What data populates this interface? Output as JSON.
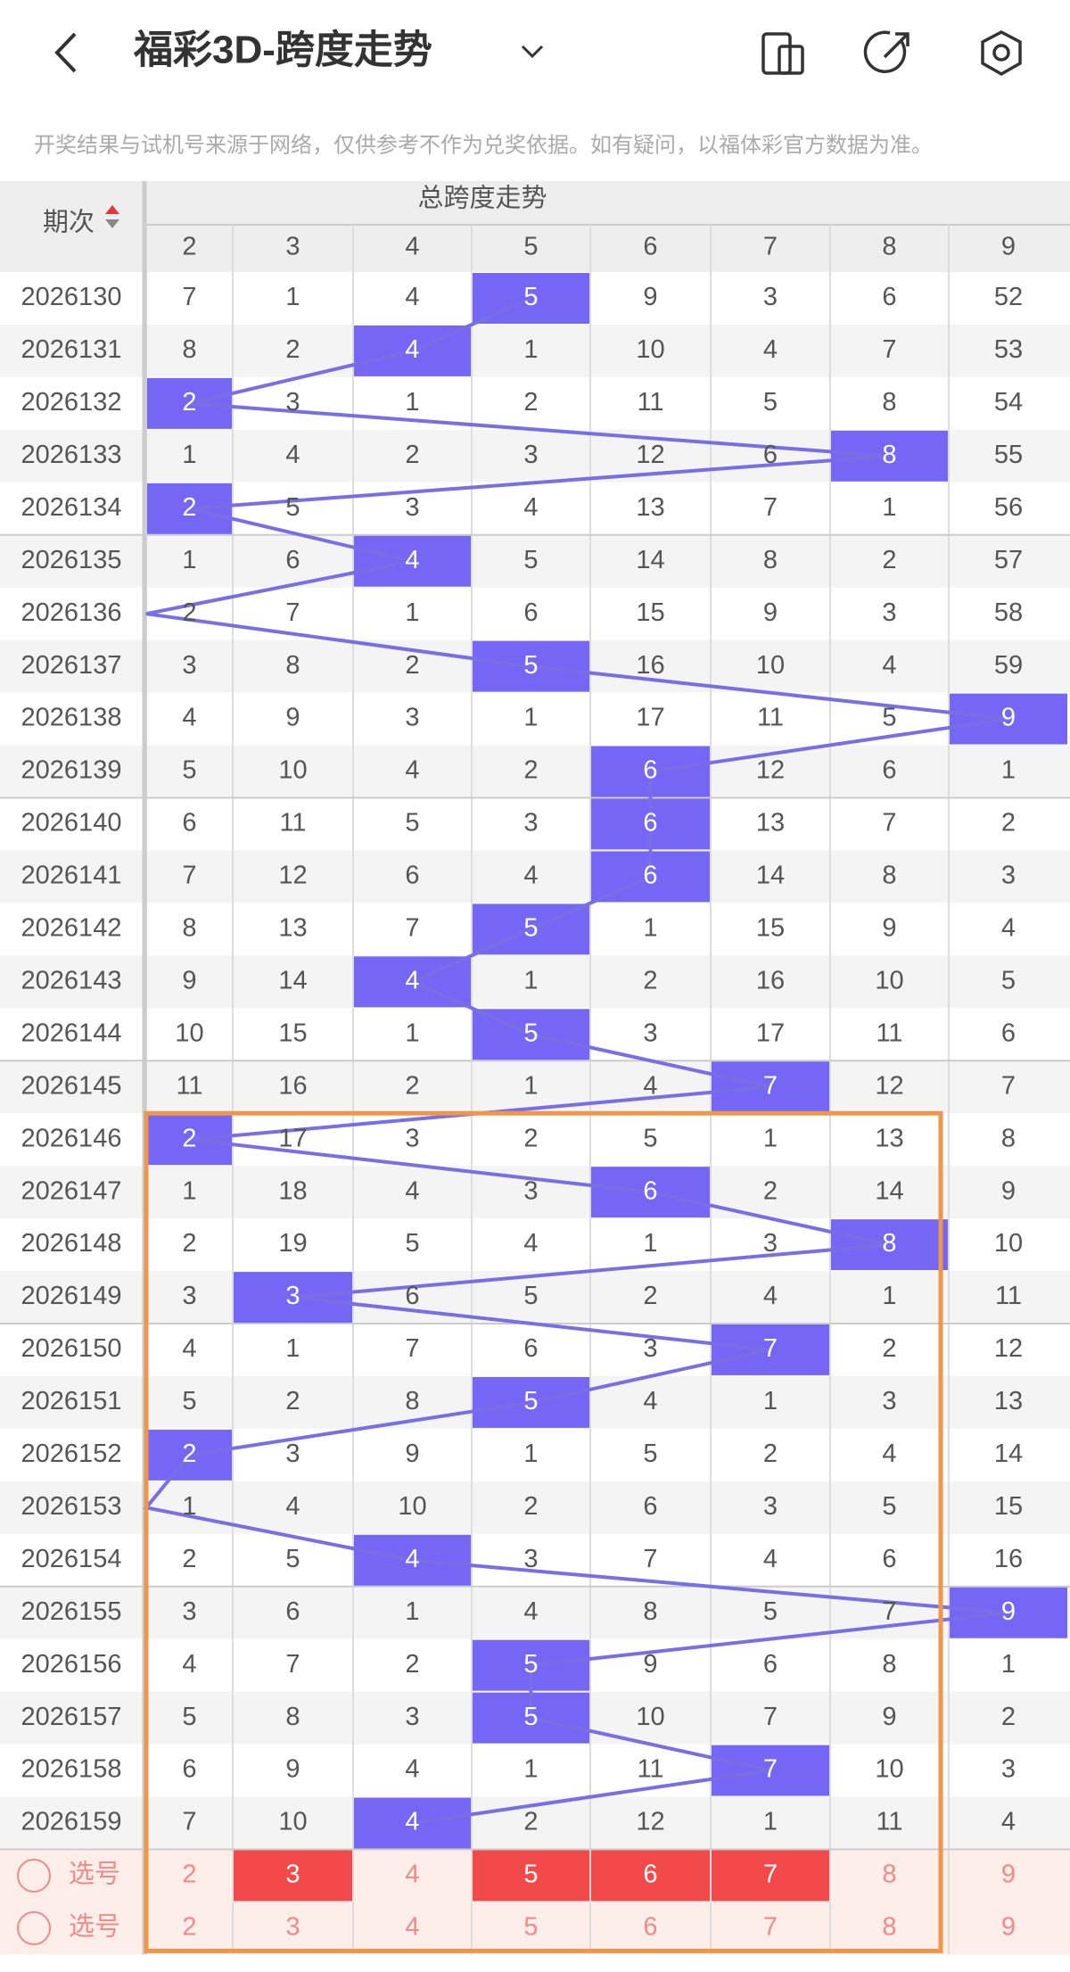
{
  "header": {
    "title": "福彩3D-跨度走势"
  },
  "notice": "开奖结果与试机号来源于网络，仅供参考不作为兑奖依据。如有疑问，以福体彩官方数据为准。",
  "table": {
    "corner": "期次",
    "group_header": "总跨度走势",
    "columns": [
      2,
      3,
      4,
      5,
      6,
      7,
      8,
      9
    ],
    "rows": [
      {
        "issue": "2026130",
        "cells": [
          7,
          1,
          4,
          5,
          9,
          3,
          6,
          52
        ],
        "hit": 3
      },
      {
        "issue": "2026131",
        "cells": [
          8,
          2,
          4,
          1,
          10,
          4,
          7,
          53
        ],
        "hit": 2
      },
      {
        "issue": "2026132",
        "cells": [
          2,
          3,
          1,
          2,
          11,
          5,
          8,
          54
        ],
        "hit": 0
      },
      {
        "issue": "2026133",
        "cells": [
          1,
          4,
          2,
          3,
          12,
          6,
          8,
          55
        ],
        "hit": 6
      },
      {
        "issue": "2026134",
        "cells": [
          2,
          5,
          3,
          4,
          13,
          7,
          1,
          56
        ],
        "hit": 0
      },
      {
        "issue": "2026135",
        "cells": [
          1,
          6,
          4,
          5,
          14,
          8,
          2,
          57
        ],
        "hit": 2
      },
      {
        "issue": "2026136",
        "cells": [
          2,
          7,
          1,
          6,
          15,
          9,
          3,
          58
        ],
        "hit": null
      },
      {
        "issue": "2026137",
        "cells": [
          3,
          8,
          2,
          5,
          16,
          10,
          4,
          59
        ],
        "hit": 3
      },
      {
        "issue": "2026138",
        "cells": [
          4,
          9,
          3,
          1,
          17,
          11,
          5,
          9
        ],
        "hit": 7
      },
      {
        "issue": "2026139",
        "cells": [
          5,
          10,
          4,
          2,
          6,
          12,
          6,
          1
        ],
        "hit": 4
      },
      {
        "issue": "2026140",
        "cells": [
          6,
          11,
          5,
          3,
          6,
          13,
          7,
          2
        ],
        "hit": 4
      },
      {
        "issue": "2026141",
        "cells": [
          7,
          12,
          6,
          4,
          6,
          14,
          8,
          3
        ],
        "hit": 4
      },
      {
        "issue": "2026142",
        "cells": [
          8,
          13,
          7,
          5,
          1,
          15,
          9,
          4
        ],
        "hit": 3
      },
      {
        "issue": "2026143",
        "cells": [
          9,
          14,
          4,
          1,
          2,
          16,
          10,
          5
        ],
        "hit": 2
      },
      {
        "issue": "2026144",
        "cells": [
          10,
          15,
          1,
          5,
          3,
          17,
          11,
          6
        ],
        "hit": 3
      },
      {
        "issue": "2026145",
        "cells": [
          11,
          16,
          2,
          1,
          4,
          7,
          12,
          7
        ],
        "hit": 5
      },
      {
        "issue": "2026146",
        "cells": [
          2,
          17,
          3,
          2,
          5,
          1,
          13,
          8
        ],
        "hit": 0
      },
      {
        "issue": "2026147",
        "cells": [
          1,
          18,
          4,
          3,
          6,
          2,
          14,
          9
        ],
        "hit": 4
      },
      {
        "issue": "2026148",
        "cells": [
          2,
          19,
          5,
          4,
          1,
          3,
          8,
          10
        ],
        "hit": 6
      },
      {
        "issue": "2026149",
        "cells": [
          3,
          3,
          6,
          5,
          2,
          4,
          1,
          11
        ],
        "hit": 1
      },
      {
        "issue": "2026150",
        "cells": [
          4,
          1,
          7,
          6,
          3,
          7,
          2,
          12
        ],
        "hit": 5
      },
      {
        "issue": "2026151",
        "cells": [
          5,
          2,
          8,
          5,
          4,
          1,
          3,
          13
        ],
        "hit": 3
      },
      {
        "issue": "2026152",
        "cells": [
          2,
          3,
          9,
          1,
          5,
          2,
          4,
          14
        ],
        "hit": 0
      },
      {
        "issue": "2026153",
        "cells": [
          1,
          4,
          10,
          2,
          6,
          3,
          5,
          15
        ],
        "hit": null
      },
      {
        "issue": "2026154",
        "cells": [
          2,
          5,
          4,
          3,
          7,
          4,
          6,
          16
        ],
        "hit": 2
      },
      {
        "issue": "2026155",
        "cells": [
          3,
          6,
          1,
          4,
          8,
          5,
          7,
          9
        ],
        "hit": 7
      },
      {
        "issue": "2026156",
        "cells": [
          4,
          7,
          2,
          5,
          9,
          6,
          8,
          1
        ],
        "hit": 3
      },
      {
        "issue": "2026157",
        "cells": [
          5,
          8,
          3,
          5,
          10,
          7,
          9,
          2
        ],
        "hit": 3
      },
      {
        "issue": "2026158",
        "cells": [
          6,
          9,
          4,
          1,
          11,
          7,
          10,
          3
        ],
        "hit": 5
      },
      {
        "issue": "2026159",
        "cells": [
          7,
          10,
          4,
          2,
          12,
          1,
          11,
          4
        ],
        "hit": 2
      }
    ],
    "select_rows": [
      {
        "label": "选号",
        "cells": [
          2,
          3,
          4,
          5,
          6,
          7,
          8,
          9
        ],
        "selected": [
          1,
          3,
          4,
          5
        ]
      },
      {
        "label": "选号",
        "cells": [
          2,
          3,
          4,
          5,
          6,
          7,
          8,
          9
        ],
        "selected": []
      }
    ]
  }
}
